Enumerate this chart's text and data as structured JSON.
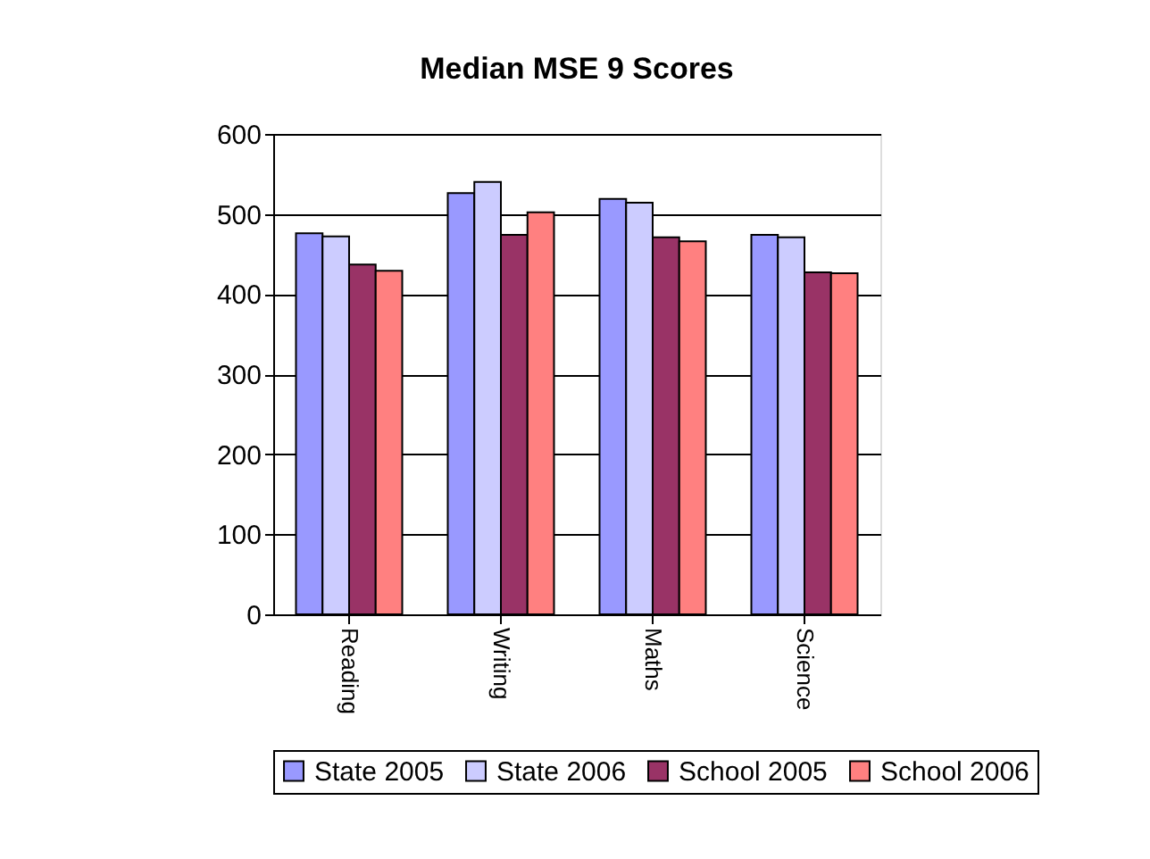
{
  "chart_data": {
    "type": "bar",
    "title": "Median MSE 9 Scores",
    "categories": [
      "Reading",
      "Writing",
      "Maths",
      "Science"
    ],
    "series": [
      {
        "name": "State 2005",
        "color": "#9999ff",
        "values": [
          476,
          526,
          519,
          474
        ]
      },
      {
        "name": "State 2006",
        "color": "#ccccff",
        "values": [
          472,
          540,
          514,
          471
        ]
      },
      {
        "name": "School 2005",
        "color": "#993366",
        "values": [
          437,
          474,
          471,
          427
        ]
      },
      {
        "name": "School 2006",
        "color": "#ff8080",
        "values": [
          429,
          502,
          466,
          426
        ]
      }
    ],
    "ylim": [
      0,
      600
    ],
    "yticks": [
      0,
      100,
      200,
      300,
      400,
      500,
      600
    ],
    "grid": "y",
    "legend": "bottom"
  }
}
